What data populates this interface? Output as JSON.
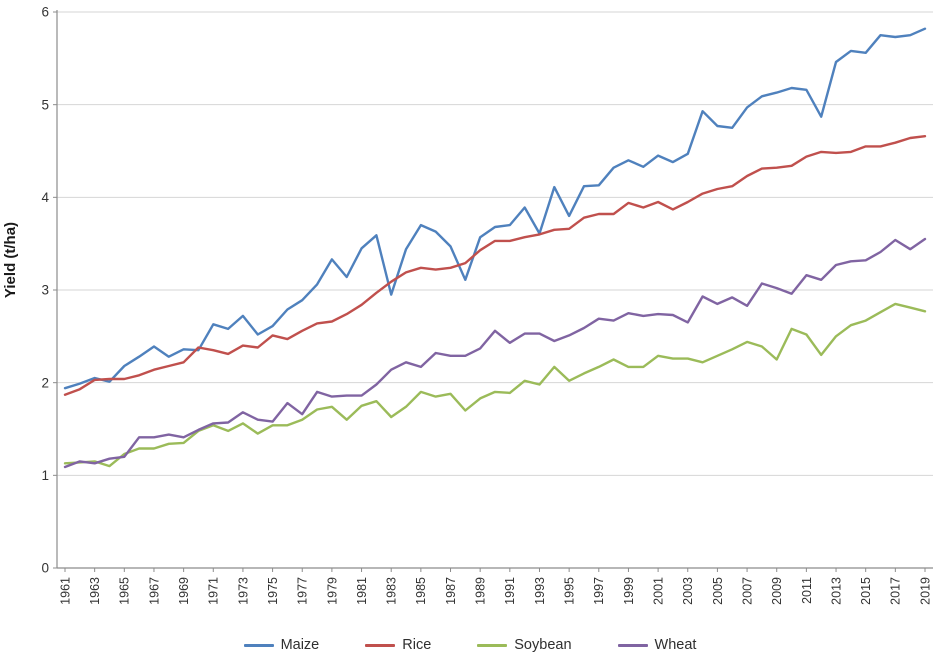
{
  "chart_data": {
    "type": "line",
    "title": "",
    "xlabel": "",
    "ylabel": "Yield (t/ha)",
    "ylim": [
      0,
      6
    ],
    "y_ticks": [
      0,
      1,
      2,
      3,
      4,
      5,
      6
    ],
    "grid": true,
    "legend_position": "bottom",
    "years": [
      1961,
      1962,
      1963,
      1964,
      1965,
      1966,
      1967,
      1968,
      1969,
      1970,
      1971,
      1972,
      1973,
      1974,
      1975,
      1976,
      1977,
      1978,
      1979,
      1980,
      1981,
      1982,
      1983,
      1984,
      1985,
      1986,
      1987,
      1988,
      1989,
      1990,
      1991,
      1992,
      1993,
      1994,
      1995,
      1996,
      1997,
      1998,
      1999,
      2000,
      2001,
      2002,
      2003,
      2004,
      2005,
      2006,
      2007,
      2008,
      2009,
      2010,
      2011,
      2012,
      2013,
      2014,
      2015,
      2016,
      2017,
      2018,
      2019
    ],
    "x_tick_labels": [
      "1961",
      "1963",
      "1965",
      "1967",
      "1969",
      "1971",
      "1973",
      "1975",
      "1977",
      "1979",
      "1981",
      "1983",
      "1985",
      "1987",
      "1989",
      "1991",
      "1993",
      "1995",
      "1997",
      "1999",
      "2001",
      "2003",
      "2005",
      "2007",
      "2009",
      "2011",
      "2013",
      "2015",
      "2017",
      "2019"
    ],
    "series": [
      {
        "name": "Maize",
        "color": "#4F81BD",
        "values": [
          1.94,
          1.99,
          2.05,
          2.01,
          2.18,
          2.28,
          2.39,
          2.28,
          2.36,
          2.35,
          2.63,
          2.58,
          2.72,
          2.52,
          2.61,
          2.79,
          2.89,
          3.06,
          3.33,
          3.14,
          3.45,
          3.59,
          2.95,
          3.44,
          3.7,
          3.63,
          3.47,
          3.11,
          3.57,
          3.68,
          3.7,
          3.89,
          3.61,
          4.11,
          3.8,
          4.12,
          4.13,
          4.32,
          4.4,
          4.33,
          4.45,
          4.38,
          4.47,
          4.93,
          4.77,
          4.75,
          4.97,
          5.09,
          5.13,
          5.18,
          5.16,
          4.87,
          5.46,
          5.58,
          5.56,
          5.75,
          5.73,
          5.75,
          5.82
        ]
      },
      {
        "name": "Rice",
        "color": "#C0504D",
        "values": [
          1.87,
          1.93,
          2.03,
          2.04,
          2.04,
          2.08,
          2.14,
          2.18,
          2.22,
          2.38,
          2.35,
          2.31,
          2.4,
          2.38,
          2.51,
          2.47,
          2.56,
          2.64,
          2.66,
          2.74,
          2.84,
          2.97,
          3.09,
          3.19,
          3.24,
          3.22,
          3.24,
          3.29,
          3.43,
          3.53,
          3.53,
          3.57,
          3.6,
          3.65,
          3.66,
          3.78,
          3.82,
          3.82,
          3.94,
          3.89,
          3.95,
          3.87,
          3.95,
          4.04,
          4.09,
          4.12,
          4.23,
          4.31,
          4.32,
          4.34,
          4.44,
          4.49,
          4.48,
          4.49,
          4.55,
          4.55,
          4.59,
          4.64,
          4.66
        ]
      },
      {
        "name": "Soybean",
        "color": "#9BBB59",
        "values": [
          1.13,
          1.14,
          1.15,
          1.1,
          1.23,
          1.29,
          1.29,
          1.34,
          1.35,
          1.48,
          1.54,
          1.48,
          1.56,
          1.45,
          1.54,
          1.54,
          1.6,
          1.71,
          1.74,
          1.6,
          1.75,
          1.8,
          1.63,
          1.74,
          1.9,
          1.85,
          1.88,
          1.7,
          1.83,
          1.9,
          1.89,
          2.02,
          1.98,
          2.17,
          2.02,
          2.1,
          2.17,
          2.25,
          2.17,
          2.17,
          2.29,
          2.26,
          2.26,
          2.22,
          2.29,
          2.36,
          2.44,
          2.39,
          2.25,
          2.58,
          2.52,
          2.3,
          2.5,
          2.62,
          2.67,
          2.76,
          2.85,
          2.81,
          2.77
        ]
      },
      {
        "name": "Wheat",
        "color": "#8064A2",
        "values": [
          1.09,
          1.15,
          1.13,
          1.18,
          1.2,
          1.41,
          1.41,
          1.44,
          1.41,
          1.49,
          1.56,
          1.57,
          1.68,
          1.6,
          1.58,
          1.78,
          1.66,
          1.9,
          1.85,
          1.86,
          1.86,
          1.98,
          2.14,
          2.22,
          2.17,
          2.32,
          2.29,
          2.29,
          2.37,
          2.56,
          2.43,
          2.53,
          2.53,
          2.45,
          2.51,
          2.59,
          2.69,
          2.67,
          2.75,
          2.72,
          2.74,
          2.73,
          2.65,
          2.93,
          2.85,
          2.92,
          2.83,
          3.07,
          3.02,
          2.96,
          3.16,
          3.11,
          3.27,
          3.31,
          3.32,
          3.41,
          3.54,
          3.44,
          3.55
        ]
      }
    ]
  },
  "colors": {
    "background": "#FFFFFF",
    "gridline": "#D6D6D6",
    "axis": "#8C8C8C",
    "tick_text": "#333333",
    "axis_title_text": "#1a1a1a"
  }
}
